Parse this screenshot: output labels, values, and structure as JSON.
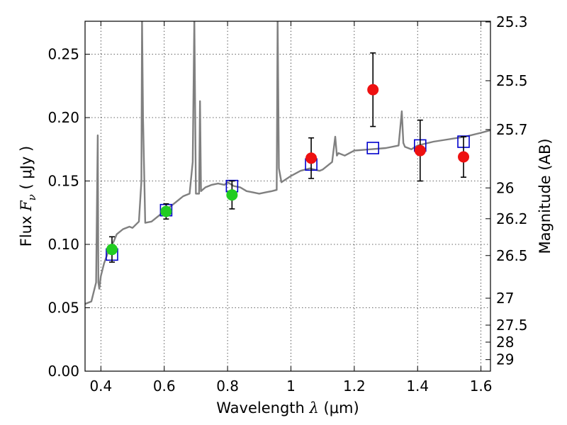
{
  "chart_data": {
    "type": "scatter",
    "xlabel_prefix": "Wavelength  ",
    "xlabel_lambda": "λ",
    "xlabel_unit": " (μm)",
    "ylabel_prefix": "Flux  ",
    "ylabel_symbol": "F",
    "ylabel_sub": "ν",
    "ylabel_unit": "  ( μJy )",
    "y2label": "Magnitude (AB)",
    "xlim": [
      0.35,
      1.63
    ],
    "ylim": [
      0.0,
      0.276
    ],
    "grid": true,
    "x_ticks": [
      0.4,
      0.6,
      0.8,
      1.0,
      1.2,
      1.4,
      1.6
    ],
    "x_tick_labels": [
      "0.4",
      "0.6",
      "0.8",
      "1",
      "1.2",
      "1.4",
      "1.6"
    ],
    "y_ticks": [
      0.0,
      0.05,
      0.1,
      0.15,
      0.2,
      0.25
    ],
    "y_tick_labels": [
      "0.00",
      "0.05",
      "0.10",
      "0.15",
      "0.20",
      "0.25"
    ],
    "mag_ticks": [
      25.3,
      25.5,
      25.7,
      26,
      26.2,
      26.5,
      27,
      27.5,
      28,
      29
    ],
    "mag_tick_labels": [
      "25.3",
      "25.5",
      "25.7",
      "26",
      "26.2",
      "26.5",
      "27",
      "27.5",
      "28",
      "29"
    ],
    "colors": {
      "model": "#808080",
      "optical": "#22cc22",
      "nir": "#ee1111",
      "synthetic": "#0000cc",
      "errorbar": "#000000"
    },
    "model_spectrum": {
      "name": "",
      "x": [
        0.35,
        0.37,
        0.385,
        0.39,
        0.392,
        0.395,
        0.4,
        0.41,
        0.42,
        0.43,
        0.44,
        0.45,
        0.47,
        0.49,
        0.5,
        0.52,
        0.528,
        0.53,
        0.533,
        0.54,
        0.56,
        0.58,
        0.6,
        0.62,
        0.64,
        0.66,
        0.68,
        0.69,
        0.695,
        0.7,
        0.71,
        0.713,
        0.716,
        0.73,
        0.75,
        0.77,
        0.79,
        0.8,
        0.82,
        0.84,
        0.86,
        0.88,
        0.9,
        0.92,
        0.94,
        0.955,
        0.958,
        0.962,
        0.97,
        1.0,
        1.03,
        1.06,
        1.09,
        1.1,
        1.13,
        1.14,
        1.145,
        1.15,
        1.17,
        1.2,
        1.25,
        1.3,
        1.34,
        1.35,
        1.355,
        1.36,
        1.38,
        1.4,
        1.45,
        1.5,
        1.55,
        1.6,
        1.63
      ],
      "y": [
        0.053,
        0.055,
        0.07,
        0.186,
        0.07,
        0.065,
        0.075,
        0.085,
        0.092,
        0.098,
        0.102,
        0.108,
        0.112,
        0.114,
        0.113,
        0.118,
        0.15,
        0.278,
        0.2,
        0.117,
        0.118,
        0.122,
        0.126,
        0.13,
        0.134,
        0.138,
        0.14,
        0.165,
        0.278,
        0.14,
        0.14,
        0.213,
        0.142,
        0.145,
        0.147,
        0.148,
        0.147,
        0.149,
        0.146,
        0.145,
        0.142,
        0.141,
        0.14,
        0.141,
        0.142,
        0.143,
        0.278,
        0.16,
        0.149,
        0.154,
        0.158,
        0.16,
        0.158,
        0.159,
        0.165,
        0.185,
        0.17,
        0.172,
        0.17,
        0.174,
        0.175,
        0.176,
        0.178,
        0.205,
        0.18,
        0.177,
        0.175,
        0.178,
        0.181,
        0.183,
        0.185,
        0.188,
        0.19
      ]
    },
    "series": [
      {
        "name": "",
        "marker": "circle",
        "color": "#22cc22",
        "points": [
          {
            "x": 0.435,
            "y": 0.096,
            "err": 0.01
          },
          {
            "x": 0.606,
            "y": 0.126,
            "err": 0.006
          },
          {
            "x": 0.814,
            "y": 0.139,
            "err": 0.011
          }
        ]
      },
      {
        "name": "",
        "marker": "circle",
        "color": "#ee1111",
        "points": [
          {
            "x": 1.064,
            "y": 0.168,
            "err": 0.016
          },
          {
            "x": 1.259,
            "y": 0.222,
            "err": 0.029
          },
          {
            "x": 1.408,
            "y": 0.174,
            "err": 0.024
          },
          {
            "x": 1.545,
            "y": 0.169,
            "err": 0.016
          }
        ]
      },
      {
        "name": "",
        "marker": "square",
        "color": "#0000cc",
        "points": [
          {
            "x": 0.435,
            "y": 0.092
          },
          {
            "x": 0.606,
            "y": 0.127
          },
          {
            "x": 0.814,
            "y": 0.146
          },
          {
            "x": 1.064,
            "y": 0.163
          },
          {
            "x": 1.259,
            "y": 0.176
          },
          {
            "x": 1.408,
            "y": 0.178
          },
          {
            "x": 1.545,
            "y": 0.181
          }
        ]
      }
    ]
  }
}
